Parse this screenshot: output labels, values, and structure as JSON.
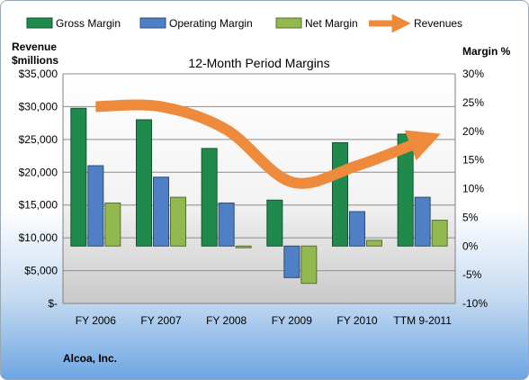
{
  "chart_data": {
    "type": "bar",
    "title": "12-Month Period Margins",
    "company": "Alcoa, Inc.",
    "left_axis_label": [
      "Revenue",
      "$millions"
    ],
    "right_axis_label": "Margin %",
    "categories": [
      "FY 2006",
      "FY 2007",
      "FY 2008",
      "FY 2009",
      "FY 2010",
      "TTM 9-2011"
    ],
    "series": [
      {
        "name": "Gross Margin",
        "type": "bar",
        "axis": "right",
        "color": "#1f8a4c",
        "values": [
          24.0,
          22.0,
          17.0,
          8.0,
          18.0,
          19.5
        ]
      },
      {
        "name": "Operating Margin",
        "type": "bar",
        "axis": "right",
        "color": "#4f7fc4",
        "values": [
          14.0,
          12.0,
          7.5,
          -5.5,
          6.0,
          8.5
        ]
      },
      {
        "name": "Net Margin",
        "type": "bar",
        "axis": "right",
        "color": "#92b950",
        "values": [
          7.5,
          8.5,
          -0.3,
          -6.5,
          1.0,
          4.5
        ]
      },
      {
        "name": "Revenues",
        "type": "line",
        "axis": "left",
        "color": "#ed8a3b",
        "values": [
          30000,
          30000,
          26500,
          18500,
          21000,
          24800
        ]
      }
    ],
    "left_axis": {
      "min": 0,
      "max": 35000,
      "step": 5000,
      "tick_labels": [
        "$-",
        "$5,000",
        "$10,000",
        "$15,000",
        "$20,000",
        "$25,000",
        "$30,000",
        "$35,000"
      ]
    },
    "right_axis": {
      "min": -10,
      "max": 30,
      "step": 5,
      "tick_labels": [
        "-10%",
        "-5%",
        "0%",
        "5%",
        "10%",
        "15%",
        "20%",
        "25%",
        "30%"
      ]
    },
    "legend_position": "top",
    "grid": true
  }
}
